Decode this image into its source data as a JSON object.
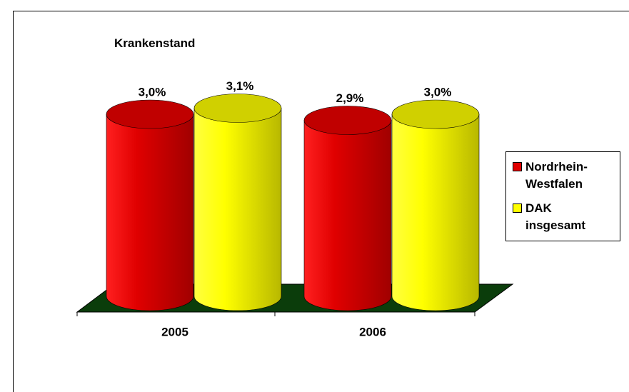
{
  "chart_data": {
    "type": "bar",
    "title": "Krankenstand",
    "categories": [
      "2005",
      "2006"
    ],
    "series": [
      {
        "name": "Nordrhein-Westfalen",
        "color": "#e00000",
        "values": [
          3.0,
          2.9
        ],
        "value_labels": [
          "3,0%",
          "2,9%"
        ]
      },
      {
        "name": "DAK insgesamt",
        "color": "#ffff00",
        "values": [
          3.1,
          3.0
        ],
        "value_labels": [
          "3,1%",
          "3,0%"
        ]
      }
    ],
    "legend": "right"
  }
}
